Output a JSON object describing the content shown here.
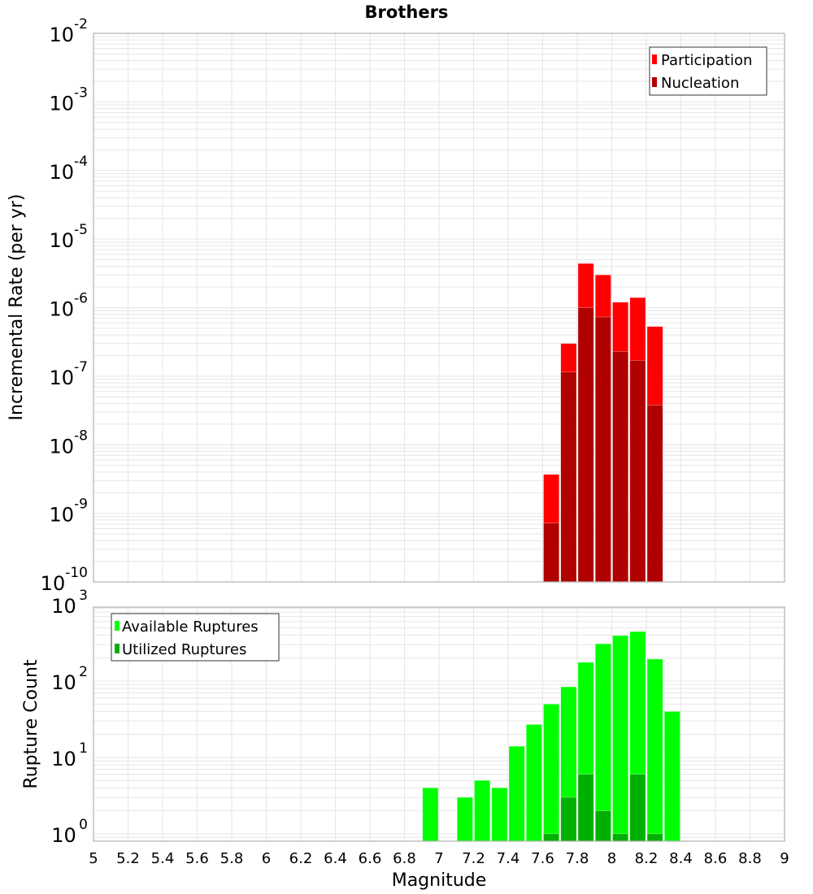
{
  "chart_data": [
    {
      "type": "bar",
      "title": "Brothers",
      "xlabel": "Magnitude",
      "ylabel": "Incremental Rate (per yr)",
      "yscale": "log",
      "xlim": [
        5,
        9
      ],
      "ylim": [
        1e-10,
        0.01
      ],
      "ytick_exponents": [
        "-2",
        "-3",
        "-4",
        "-5",
        "-6",
        "-7",
        "-8",
        "-9",
        "-10"
      ],
      "ytick_base": "10",
      "grid": true,
      "legend_position": "top-right",
      "bin_width": 0.1,
      "x": [
        7.65,
        7.75,
        7.85,
        7.95,
        8.05,
        8.15,
        8.25
      ],
      "series": [
        {
          "name": "Participation",
          "color": "#ff0000",
          "values": [
            3.7e-09,
            3e-07,
            4.4e-06,
            3e-06,
            1.2e-06,
            1.4e-06,
            5.3e-07
          ]
        },
        {
          "name": "Nucleation",
          "color": "#b00000",
          "values": [
            7.2e-10,
            1.15e-07,
            1e-06,
            7.3e-07,
            2.3e-07,
            1.7e-07,
            3.8e-08
          ]
        }
      ]
    },
    {
      "type": "bar",
      "xlabel": "Magnitude",
      "ylabel": "Rupture Count",
      "yscale": "log",
      "xlim": [
        5,
        9
      ],
      "ylim": [
        0.8,
        930
      ],
      "ytick_exponents": [
        "3",
        "2",
        "1",
        "0"
      ],
      "ytick_base": "10",
      "xticks": [
        "5",
        "5.2",
        "5.4",
        "5.6",
        "5.8",
        "6",
        "6.2",
        "6.4",
        "6.6",
        "6.8",
        "7",
        "7.2",
        "7.4",
        "7.6",
        "7.8",
        "8",
        "8.2",
        "8.4",
        "8.6",
        "8.8",
        "9"
      ],
      "grid": true,
      "legend_position": "top-left",
      "bin_width": 0.1,
      "x": [
        6.95,
        7.15,
        7.25,
        7.35,
        7.45,
        7.55,
        7.65,
        7.75,
        7.85,
        7.95,
        8.05,
        8.15,
        8.25,
        8.35
      ],
      "series": [
        {
          "name": "Available Ruptures",
          "color": "#00ff00",
          "values": [
            4,
            3,
            5,
            4,
            14,
            27,
            50,
            84,
            176,
            308,
            394,
            445,
            194,
            40
          ]
        },
        {
          "name": "Utilized Ruptures",
          "color": "#00b000",
          "values": [
            0,
            0,
            0,
            0,
            0,
            0,
            1,
            3,
            6,
            2,
            1,
            6,
            1,
            0
          ]
        }
      ]
    }
  ]
}
